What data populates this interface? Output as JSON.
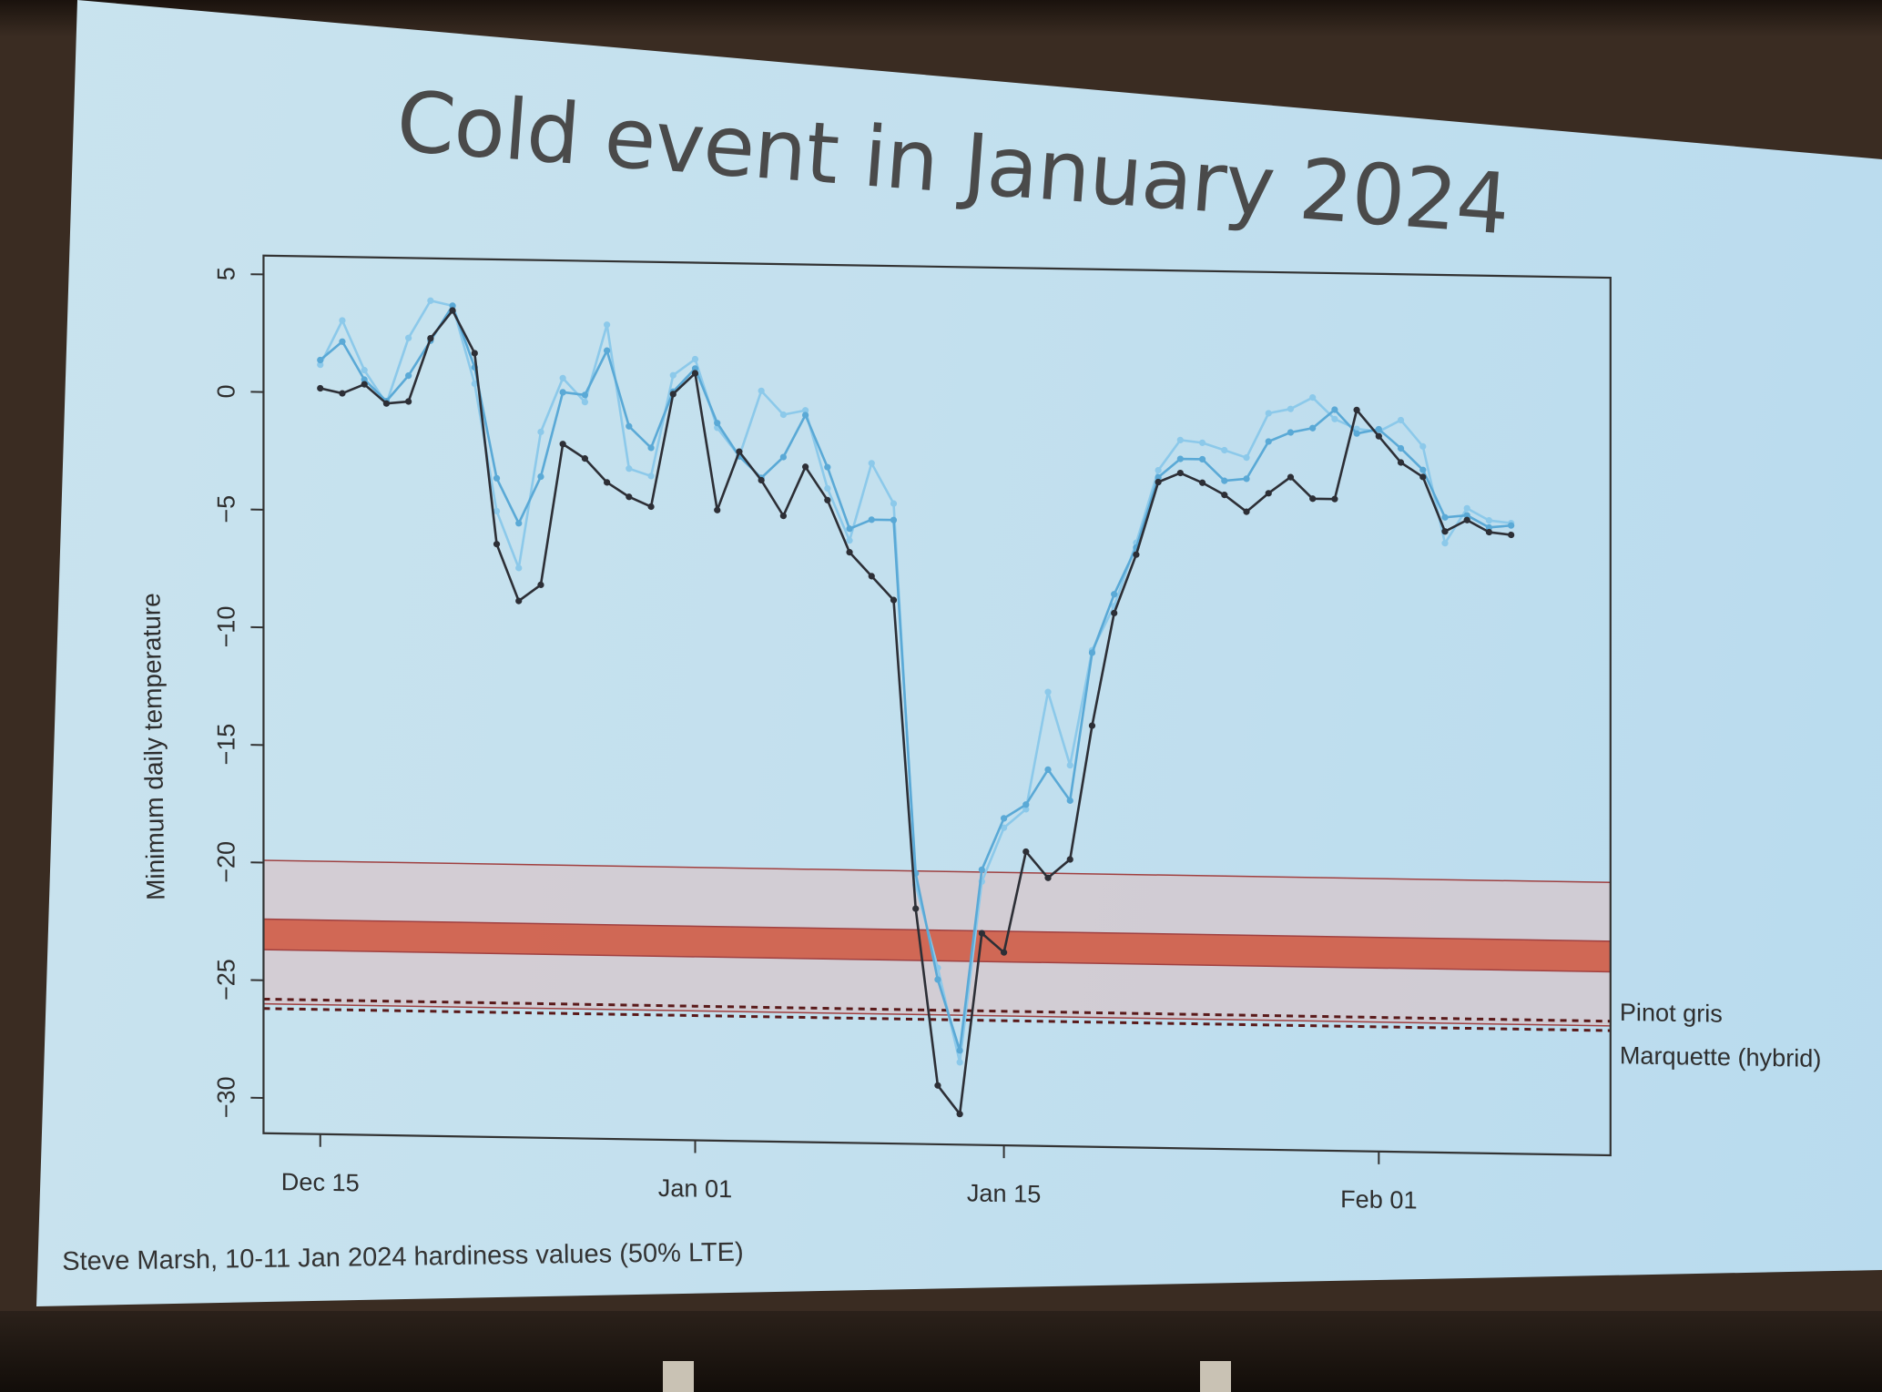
{
  "slide": {
    "title": "Cold event in January 2024",
    "credit": "Steve Marsh, 10-11 Jan 2024 hardiness values (50% LTE)"
  },
  "colors": {
    "black_series": "#2d2f36",
    "blue_mid": "#5aa9d6",
    "blue_light": "#8cc9ea",
    "band_light": "#d9c4c9",
    "band_dark": "#d0563e",
    "band_edge": "#a04040",
    "dashed": "#5a1a1a"
  },
  "chart_data": {
    "type": "line",
    "title": "",
    "xlabel": "",
    "ylabel": "Minimum daily temperature",
    "ylim": [
      -31.5,
      5.8
    ],
    "yticks": [
      5,
      0,
      -5,
      -10,
      -15,
      -20,
      -25,
      -30
    ],
    "ytick_labels": [
      "5",
      "0",
      "-5",
      "-10",
      "-15",
      "-20",
      "-25",
      "-30"
    ],
    "xticks": [
      {
        "day": 0,
        "label": "Dec 15"
      },
      {
        "day": 17,
        "label": "Jan 01"
      },
      {
        "day": 31,
        "label": "Jan 15"
      },
      {
        "day": 48,
        "label": "Feb 01"
      }
    ],
    "x_start_date": "2023-12-14",
    "x_end_date": "2024-02-05",
    "series": [
      {
        "name": "",
        "color": "#2d2f36",
        "values": [
          0.2,
          0.0,
          0.4,
          -0.4,
          -0.3,
          2.4,
          3.6,
          1.8,
          -6.3,
          -8.7,
          -8.0,
          -2.0,
          -2.6,
          -3.6,
          -4.2,
          -4.6,
          0.2,
          1.1,
          -4.7,
          -2.2,
          -3.4,
          -4.9,
          -2.8,
          -4.2,
          -6.4,
          -7.4,
          -8.4,
          -21.5,
          -29.0,
          -30.2,
          -22.5,
          -23.3,
          -19.0,
          -20.1,
          -19.3,
          -13.6,
          -8.8,
          -6.3,
          -3.2,
          -2.8,
          -3.2,
          -3.7,
          -4.4,
          -3.6,
          -2.9,
          -3.8,
          -3.8,
          0.0,
          -1.1,
          -2.2,
          -2.8,
          -5.1,
          -4.6,
          -5.1,
          -5.2
        ]
      },
      {
        "name": "",
        "color": "#5aa9d6",
        "values": [
          1.4,
          2.2,
          0.6,
          -0.3,
          0.8,
          2.3,
          3.8,
          1.2,
          -3.5,
          -5.4,
          -3.4,
          0.2,
          0.1,
          2.0,
          -1.2,
          -2.1,
          0.3,
          1.3,
          -1.0,
          -2.4,
          -3.3,
          -2.4,
          -0.6,
          -2.8,
          -5.4,
          -5.0,
          -5.0,
          -20.0,
          -24.5,
          -27.5,
          -19.8,
          -17.6,
          -17.0,
          -15.5,
          -16.8,
          -10.5,
          -8.0,
          -6.0,
          -3.0,
          -2.2,
          -2.2,
          -3.1,
          -3.0,
          -1.4,
          -1.0,
          -0.8,
          0.0,
          -1.0,
          -0.8,
          -1.6,
          -2.5,
          -4.5,
          -4.4,
          -4.9,
          -4.8
        ]
      },
      {
        "name": "",
        "color": "#8cc9ea",
        "values": [
          1.2,
          3.1,
          1.0,
          -0.4,
          2.4,
          4.0,
          3.8,
          0.5,
          -4.9,
          -7.3,
          -1.5,
          0.8,
          -0.2,
          3.1,
          -3.0,
          -3.3,
          1.0,
          1.7,
          -1.2,
          -2.4,
          0.4,
          -0.6,
          -0.4,
          -3.7,
          -5.9,
          -2.6,
          -4.3,
          -20.5,
          -24.0,
          -28.0,
          -20.3,
          -18.0,
          -17.2,
          -12.2,
          -15.3,
          -10.4,
          -8.5,
          -5.8,
          -2.7,
          -1.4,
          -1.5,
          -1.8,
          -2.1,
          -0.2,
          0.0,
          0.5,
          -0.4,
          -0.8,
          -0.9,
          -0.4,
          -1.5,
          -5.6,
          -4.1,
          -4.6,
          -4.7
        ]
      }
    ],
    "hardiness_bands": [
      {
        "from": -19.9,
        "to": -26.0,
        "style": "light"
      },
      {
        "from": -22.4,
        "to": -23.7,
        "style": "dark"
      }
    ],
    "hardiness_lines": [
      {
        "label": "Pinot gris",
        "value": -25.8
      },
      {
        "label": "Marquette (hybrid)",
        "value": -26.2
      }
    ]
  }
}
